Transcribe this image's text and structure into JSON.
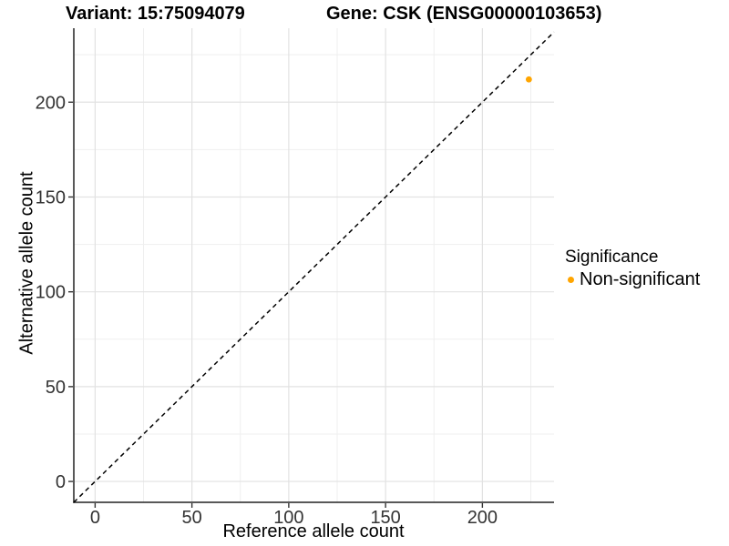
{
  "header": {
    "title_left": "Variant: 15:75094079",
    "title_right": "Gene: CSK (ENSG00000103653)"
  },
  "chart_data": {
    "type": "scatter",
    "xlabel": "Reference allele count",
    "ylabel": "Alternative allele count",
    "xlim": [
      -11,
      237
    ],
    "ylim": [
      -11,
      239
    ],
    "x_ticks": [
      0,
      50,
      100,
      150,
      200
    ],
    "y_ticks": [
      0,
      50,
      100,
      150,
      200
    ],
    "minor_step": 25,
    "grid": true,
    "colors": {
      "major_grid": "#e2e2e2",
      "minor_grid": "#efefef",
      "axis_line": "#222222",
      "tick_mark": "#333333",
      "reference_line": "#000000"
    },
    "reference_line": {
      "type": "identity",
      "slope": 1,
      "intercept": 0,
      "style": "dashed"
    },
    "series": [
      {
        "name": "Non-significant",
        "color": "#FFA500",
        "points": [
          {
            "x": 224,
            "y": 212
          }
        ]
      }
    ],
    "legend": {
      "title": "Significance",
      "position": "right",
      "items": [
        {
          "label": "Non-significant",
          "color": "#FFA500"
        }
      ]
    }
  }
}
